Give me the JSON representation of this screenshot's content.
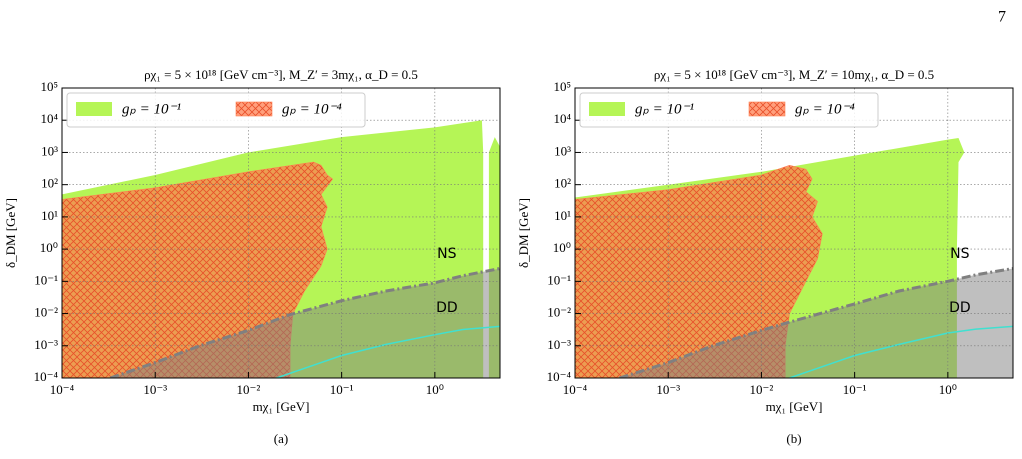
{
  "page_number": "7",
  "chart_data": [
    {
      "type": "area",
      "subcaption": "(a)",
      "title": "ρχ₁ = 5 × 10¹⁸ [GeV cm⁻³], M_Z′ = 3mχ₁, α_D = 0.5",
      "x_label": "mχ₁ [GeV]",
      "y_label": "δ_DM [GeV]",
      "xscale": "log",
      "yscale": "log",
      "grid": true,
      "legend": "upper left",
      "xlim": [
        0.0001,
        5
      ],
      "ylim": [
        0.0001,
        100000
      ],
      "xticks": [
        {
          "value": 0.0001,
          "label": "10⁻⁴"
        },
        {
          "value": 0.001,
          "label": "10⁻³"
        },
        {
          "value": 0.01,
          "label": "10⁻²"
        },
        {
          "value": 0.1,
          "label": "10⁻¹"
        },
        {
          "value": 1,
          "label": "10⁰"
        }
      ],
      "yticks": [
        {
          "value": 0.0001,
          "label": "10⁻⁴"
        },
        {
          "value": 0.001,
          "label": "10⁻³"
        },
        {
          "value": 0.01,
          "label": "10⁻²"
        },
        {
          "value": 0.1,
          "label": "10⁻¹"
        },
        {
          "value": 1,
          "label": "10⁰"
        },
        {
          "value": 10,
          "label": "10¹"
        },
        {
          "value": 100,
          "label": "10²"
        },
        {
          "value": 1000,
          "label": "10³"
        },
        {
          "value": 10000,
          "label": "10⁴"
        },
        {
          "value": 100000,
          "label": "10⁵"
        }
      ],
      "series": [
        {
          "name": "gₚ = 10⁻¹",
          "color": "#b5f556",
          "hatch": false,
          "x": [
            0.0001,
            0.0001,
            0.001,
            0.01,
            0.1,
            1,
            3.2,
            3.3,
            3.3,
            null,
            3.8,
            3.8,
            4.4,
            5,
            5
          ],
          "values": [
            0.0001,
            50,
            200,
            1000,
            3000,
            6000,
            10000,
            1000,
            0.0001,
            null,
            0.0001,
            1000,
            3000,
            1500,
            0.0001
          ]
        },
        {
          "name": "gₚ = 10⁻⁴",
          "color": "#ff7f50",
          "hatch": true,
          "x": [
            0.0001,
            0.0001,
            0.001,
            0.01,
            0.05,
            0.06,
            0.07,
            0.08,
            0.06,
            0.07,
            0.06,
            0.07,
            0.06,
            0.04,
            0.03,
            0.028,
            0.028
          ],
          "values": [
            0.0001,
            35,
            80,
            250,
            500,
            400,
            200,
            150,
            50,
            20,
            5,
            1,
            0.3,
            0.05,
            0.01,
            0.001,
            0.0001
          ]
        }
      ],
      "curves": [
        {
          "label": "NS",
          "color": "#808080",
          "style": "dashdot",
          "fill": true,
          "x": [
            0.00033,
            0.001,
            0.003,
            0.01,
            0.027,
            0.1,
            0.3,
            1,
            2,
            5
          ],
          "values": [
            0.0001,
            0.0003,
            0.001,
            0.003,
            0.009,
            0.025,
            0.05,
            0.09,
            0.15,
            0.25
          ]
        },
        {
          "label": "DD",
          "color": "#40e0d0",
          "style": "solid",
          "fill": false,
          "x": [
            0.02,
            0.05,
            0.1,
            0.3,
            1,
            2,
            5
          ],
          "values": [
            0.0001,
            0.00025,
            0.0005,
            0.0011,
            0.0022,
            0.0032,
            0.004
          ]
        }
      ]
    },
    {
      "type": "area",
      "subcaption": "(b)",
      "title": "ρχ₁ = 5 × 10¹⁸ [GeV cm⁻³], M_Z′ = 10mχ₁, α_D = 0.5",
      "x_label": "mχ₁ [GeV]",
      "y_label": "δ_DM [GeV]",
      "xscale": "log",
      "yscale": "log",
      "grid": true,
      "legend": "upper left",
      "xlim": [
        0.0001,
        5
      ],
      "ylim": [
        0.0001,
        100000
      ],
      "xticks": [
        {
          "value": 0.0001,
          "label": "10⁻⁴"
        },
        {
          "value": 0.001,
          "label": "10⁻³"
        },
        {
          "value": 0.01,
          "label": "10⁻²"
        },
        {
          "value": 0.1,
          "label": "10⁻¹"
        },
        {
          "value": 1,
          "label": "10⁰"
        }
      ],
      "yticks": [
        {
          "value": 0.0001,
          "label": "10⁻⁴"
        },
        {
          "value": 0.001,
          "label": "10⁻³"
        },
        {
          "value": 0.01,
          "label": "10⁻²"
        },
        {
          "value": 0.1,
          "label": "10⁻¹"
        },
        {
          "value": 1,
          "label": "10⁰"
        },
        {
          "value": 10,
          "label": "10¹"
        },
        {
          "value": 100,
          "label": "10²"
        },
        {
          "value": 1000,
          "label": "10³"
        },
        {
          "value": 10000,
          "label": "10⁴"
        },
        {
          "value": 100000,
          "label": "10⁵"
        }
      ],
      "series": [
        {
          "name": "gₚ = 10⁻¹",
          "color": "#b5f556",
          "hatch": false,
          "x": [
            0.0001,
            0.0001,
            0.001,
            0.01,
            0.1,
            1,
            1.3,
            1.5,
            1.3,
            1.25,
            1.25
          ],
          "values": [
            0.0001,
            40,
            100,
            250,
            800,
            2500,
            2800,
            1000,
            500,
            1,
            0.0001
          ]
        },
        {
          "name": "gₚ = 10⁻⁴",
          "color": "#ff7f50",
          "hatch": true,
          "x": [
            0.0001,
            0.0001,
            0.001,
            0.01,
            0.02,
            0.03,
            0.035,
            0.03,
            0.04,
            0.035,
            0.045,
            0.04,
            0.03,
            0.02,
            0.018,
            0.018
          ],
          "values": [
            0.0001,
            35,
            70,
            200,
            400,
            300,
            150,
            60,
            30,
            10,
            3,
            0.5,
            0.1,
            0.01,
            0.001,
            0.0001
          ]
        }
      ],
      "curves": [
        {
          "label": "NS",
          "color": "#808080",
          "style": "dashdot",
          "fill": true,
          "x": [
            0.0003,
            0.001,
            0.003,
            0.01,
            0.018,
            0.1,
            0.3,
            1,
            2,
            5
          ],
          "values": [
            0.0001,
            0.0003,
            0.001,
            0.003,
            0.005,
            0.02,
            0.05,
            0.1,
            0.16,
            0.25
          ]
        },
        {
          "label": "DD",
          "color": "#40e0d0",
          "style": "solid",
          "fill": false,
          "x": [
            0.02,
            0.05,
            0.1,
            0.3,
            1,
            2,
            5
          ],
          "values": [
            0.0001,
            0.00025,
            0.0005,
            0.0011,
            0.0025,
            0.0033,
            0.004
          ]
        }
      ]
    }
  ]
}
